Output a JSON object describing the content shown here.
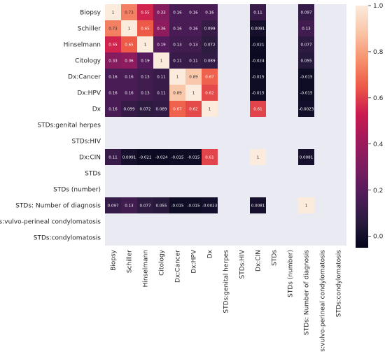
{
  "chart_data": {
    "type": "heatmap",
    "title": "",
    "xlabel": "",
    "ylabel": "",
    "labels": [
      "Biopsy",
      "Schiller",
      "Hinselmann",
      "Citology",
      "Dx:Cancer",
      "Dx:HPV",
      "Dx",
      "STDs:genital herpes",
      "STDs:HIV",
      "Dx:CIN",
      "STDs",
      "STDs (number)",
      "STDs: Number of diagnosis",
      "STDs:vulvo-perineal condylomatosis",
      "STDs:condylomatosis"
    ],
    "values": [
      [
        1,
        0.73,
        0.55,
        0.33,
        0.16,
        0.16,
        0.16,
        null,
        null,
        0.11,
        null,
        null,
        0.097,
        null,
        null
      ],
      [
        0.73,
        1,
        0.65,
        0.36,
        0.16,
        0.16,
        0.099,
        null,
        null,
        0.0091,
        null,
        null,
        0.13,
        null,
        null
      ],
      [
        0.55,
        0.65,
        1,
        0.19,
        0.13,
        0.13,
        0.072,
        null,
        null,
        -0.021,
        null,
        null,
        0.077,
        null,
        null
      ],
      [
        0.33,
        0.36,
        0.19,
        1,
        0.11,
        0.11,
        0.089,
        null,
        null,
        -0.024,
        null,
        null,
        0.055,
        null,
        null
      ],
      [
        0.16,
        0.16,
        0.13,
        0.11,
        1,
        0.89,
        0.67,
        null,
        null,
        -0.015,
        null,
        null,
        -0.015,
        null,
        null
      ],
      [
        0.16,
        0.16,
        0.13,
        0.11,
        0.89,
        1,
        0.62,
        null,
        null,
        -0.015,
        null,
        null,
        -0.015,
        null,
        null
      ],
      [
        0.16,
        0.099,
        0.072,
        0.089,
        0.67,
        0.62,
        1,
        null,
        null,
        0.61,
        null,
        null,
        -0.0023,
        null,
        null
      ],
      [
        null,
        null,
        null,
        null,
        null,
        null,
        null,
        null,
        null,
        null,
        null,
        null,
        null,
        null,
        null
      ],
      [
        null,
        null,
        null,
        null,
        null,
        null,
        null,
        null,
        null,
        null,
        null,
        null,
        null,
        null,
        null
      ],
      [
        0.11,
        0.0091,
        -0.021,
        -0.024,
        -0.015,
        -0.015,
        0.61,
        null,
        null,
        1,
        null,
        null,
        0.0081,
        null,
        null
      ],
      [
        null,
        null,
        null,
        null,
        null,
        null,
        null,
        null,
        null,
        null,
        null,
        null,
        null,
        null,
        null
      ],
      [
        null,
        null,
        null,
        null,
        null,
        null,
        null,
        null,
        null,
        null,
        null,
        null,
        null,
        null,
        null
      ],
      [
        0.097,
        0.13,
        0.077,
        0.055,
        -0.015,
        -0.015,
        -0.0023,
        null,
        null,
        0.0081,
        null,
        null,
        1,
        null,
        null
      ],
      [
        null,
        null,
        null,
        null,
        null,
        null,
        null,
        null,
        null,
        null,
        null,
        null,
        null,
        null,
        null
      ],
      [
        null,
        null,
        null,
        null,
        null,
        null,
        null,
        null,
        null,
        null,
        null,
        null,
        null,
        null,
        null
      ]
    ],
    "colorbar": {
      "min": -0.05,
      "max": 1.0,
      "ticks": [
        0.0,
        0.2,
        0.4,
        0.6,
        0.8,
        1.0
      ],
      "tick_labels": [
        "0.0",
        "0.2",
        "0.4",
        "0.6",
        "0.8",
        "1.0"
      ]
    },
    "colors": {
      "missing_cell": "#eaeaf2",
      "colormap_stops": [
        "#03051a",
        "#2b1b3f",
        "#521c5c",
        "#7a1d5f",
        "#a11a5b",
        "#cb1b4f",
        "#ed5a47",
        "#f6916e",
        "#f9c5a7",
        "#faebdd"
      ]
    }
  }
}
